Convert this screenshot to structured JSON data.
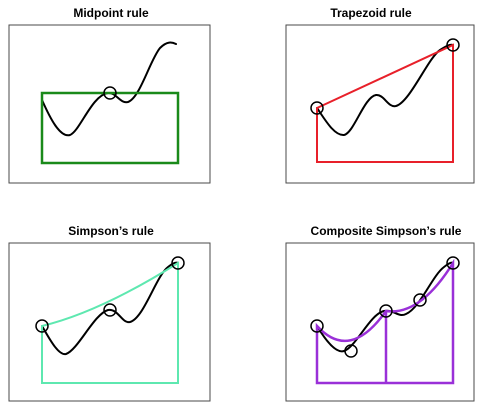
{
  "panels": [
    {
      "title": "Midpoint rule",
      "color": "#1a8a1a"
    },
    {
      "title": "Trapezoid rule",
      "color": "#e8202a"
    },
    {
      "title": "Simpson’s rule",
      "color": "#5ee8b0"
    },
    {
      "title": "Composite Simpson’s rule",
      "color": "#9a30d8"
    }
  ]
}
